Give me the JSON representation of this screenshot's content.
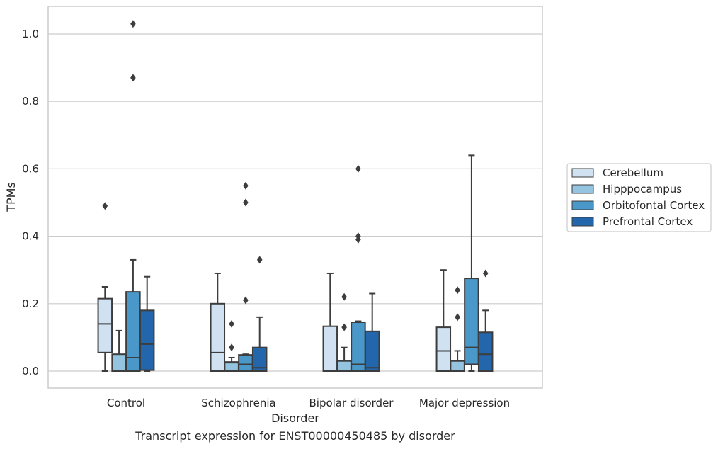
{
  "chart_data": {
    "type": "box",
    "xlabel": "Disorder",
    "ylabel": "TPMs",
    "ylim": [
      -0.05,
      1.08
    ],
    "yticks": [
      0.0,
      0.2,
      0.4,
      0.6,
      0.8,
      1.0
    ],
    "ytick_labels": [
      "0.0",
      "0.2",
      "0.4",
      "0.6",
      "0.8",
      "1.0"
    ],
    "categories": [
      "Control",
      "Schizophrenia",
      "Bipolar disorder",
      "Major depression"
    ],
    "grid": "horizontal",
    "legend_placement": "right",
    "series": [
      {
        "name": "Cerebellum",
        "color": "#d0e1f2",
        "boxes": [
          {
            "whisker_low": 0.0,
            "q1": 0.055,
            "median": 0.14,
            "q3": 0.215,
            "whisker_high": 0.25,
            "outliers": [
              0.49
            ]
          },
          {
            "whisker_low": 0.0,
            "q1": 0.0,
            "median": 0.055,
            "q3": 0.2,
            "whisker_high": 0.29,
            "outliers": []
          },
          {
            "whisker_low": 0.0,
            "q1": 0.0,
            "median": 0.0,
            "q3": 0.133,
            "whisker_high": 0.29,
            "outliers": []
          },
          {
            "whisker_low": 0.0,
            "q1": 0.0,
            "median": 0.06,
            "q3": 0.13,
            "whisker_high": 0.3,
            "outliers": []
          }
        ]
      },
      {
        "name": "Hipppocampus",
        "color": "#94c4df",
        "boxes": [
          {
            "whisker_low": 0.0,
            "q1": 0.0,
            "median": 0.0,
            "q3": 0.05,
            "whisker_high": 0.12,
            "outliers": []
          },
          {
            "whisker_low": 0.0,
            "q1": 0.0,
            "median": 0.025,
            "q3": 0.027,
            "whisker_high": 0.04,
            "outliers": [
              0.07,
              0.14
            ]
          },
          {
            "whisker_low": 0.0,
            "q1": 0.0,
            "median": 0.0,
            "q3": 0.03,
            "whisker_high": 0.07,
            "outliers": [
              0.13,
              0.22
            ]
          },
          {
            "whisker_low": 0.0,
            "q1": 0.0,
            "median": 0.0,
            "q3": 0.03,
            "whisker_high": 0.06,
            "outliers": [
              0.16,
              0.24
            ]
          }
        ]
      },
      {
        "name": "Orbitofontal Cortex",
        "color": "#4a98c9",
        "boxes": [
          {
            "whisker_low": 0.0,
            "q1": 0.0,
            "median": 0.04,
            "q3": 0.235,
            "whisker_high": 0.33,
            "outliers": [
              0.87,
              1.03
            ]
          },
          {
            "whisker_low": 0.0,
            "q1": 0.0,
            "median": 0.02,
            "q3": 0.048,
            "whisker_high": 0.05,
            "outliers": [
              0.21,
              0.5,
              0.55
            ]
          },
          {
            "whisker_low": 0.0,
            "q1": 0.0,
            "median": 0.02,
            "q3": 0.145,
            "whisker_high": 0.148,
            "outliers": [
              0.39,
              0.4,
              0.6
            ]
          },
          {
            "whisker_low": 0.0,
            "q1": 0.02,
            "median": 0.07,
            "q3": 0.275,
            "whisker_high": 0.64,
            "outliers": []
          }
        ]
      },
      {
        "name": "Prefrontal Cortex",
        "color": "#2366ac",
        "boxes": [
          {
            "whisker_low": 0.0,
            "q1": 0.003,
            "median": 0.08,
            "q3": 0.18,
            "whisker_high": 0.28,
            "outliers": []
          },
          {
            "whisker_low": 0.0,
            "q1": 0.0,
            "median": 0.01,
            "q3": 0.07,
            "whisker_high": 0.16,
            "outliers": [
              0.33
            ]
          },
          {
            "whisker_low": 0.0,
            "q1": 0.0,
            "median": 0.01,
            "q3": 0.118,
            "whisker_high": 0.23,
            "outliers": []
          },
          {
            "whisker_low": 0.0,
            "q1": 0.0,
            "median": 0.05,
            "q3": 0.115,
            "whisker_high": 0.18,
            "outliers": [
              0.29
            ]
          }
        ]
      }
    ]
  },
  "caption": "Transcript expression for ENST00000450485 by disorder",
  "colors": {
    "box_edge": "#3d3d3d",
    "grid": "#cccccc",
    "frame": "#cccccc"
  }
}
